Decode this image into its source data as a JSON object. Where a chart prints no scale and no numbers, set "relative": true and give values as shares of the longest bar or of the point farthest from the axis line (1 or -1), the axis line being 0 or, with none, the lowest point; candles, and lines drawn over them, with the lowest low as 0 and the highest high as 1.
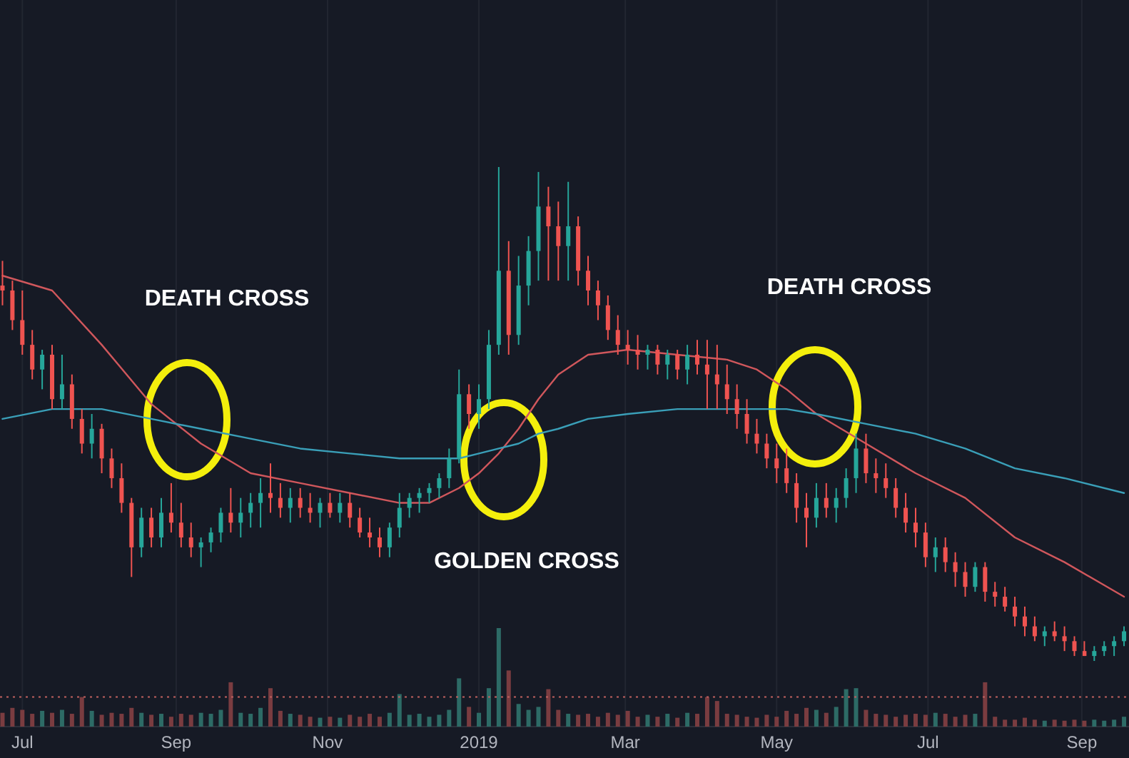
{
  "chart_data": [
    {
      "type": "candlestick",
      "relative": true,
      "tick_labels": false,
      "grid": "x",
      "xlim": [
        "2018-06-22",
        "2019-09-20"
      ],
      "xticks": [
        {
          "value": "2018-07-01",
          "label": null
        },
        {
          "value": "2018-09-01",
          "label": null
        },
        {
          "value": "2018-11-01",
          "label": null
        },
        {
          "value": "2019-01-01",
          "label": null
        },
        {
          "value": "2019-03-01",
          "label": null
        },
        {
          "value": "2019-05-01",
          "label": null
        },
        {
          "value": "2019-07-01",
          "label": null
        },
        {
          "value": "2019-09-01",
          "label": null
        }
      ],
      "x": [
        "2018-06-23",
        "2018-06-27",
        "2018-07-01",
        "2018-07-05",
        "2018-07-09",
        "2018-07-13",
        "2018-07-17",
        "2018-07-21",
        "2018-07-25",
        "2018-07-29",
        "2018-08-02",
        "2018-08-06",
        "2018-08-10",
        "2018-08-14",
        "2018-08-18",
        "2018-08-22",
        "2018-08-26",
        "2018-08-30",
        "2018-09-03",
        "2018-09-07",
        "2018-09-11",
        "2018-09-15",
        "2018-09-19",
        "2018-09-23",
        "2018-09-27",
        "2018-10-01",
        "2018-10-05",
        "2018-10-09",
        "2018-10-13",
        "2018-10-17",
        "2018-10-21",
        "2018-10-25",
        "2018-10-29",
        "2018-11-02",
        "2018-11-06",
        "2018-11-10",
        "2018-11-14",
        "2018-11-18",
        "2018-11-22",
        "2018-11-26",
        "2018-11-30",
        "2018-12-04",
        "2018-12-08",
        "2018-12-12",
        "2018-12-16",
        "2018-12-20",
        "2018-12-24",
        "2018-12-28",
        "2019-01-01",
        "2019-01-05",
        "2019-01-09",
        "2019-01-13",
        "2019-01-17",
        "2019-01-21",
        "2019-01-25",
        "2019-01-29",
        "2019-02-02",
        "2019-02-06",
        "2019-02-10",
        "2019-02-14",
        "2019-02-18",
        "2019-02-22",
        "2019-02-26",
        "2019-03-02",
        "2019-03-06",
        "2019-03-10",
        "2019-03-14",
        "2019-03-18",
        "2019-03-22",
        "2019-03-26",
        "2019-03-30",
        "2019-04-03",
        "2019-04-07",
        "2019-04-11",
        "2019-04-15",
        "2019-04-19",
        "2019-04-23",
        "2019-04-27",
        "2019-05-01",
        "2019-05-05",
        "2019-05-09",
        "2019-05-13",
        "2019-05-17",
        "2019-05-21",
        "2019-05-25",
        "2019-05-29",
        "2019-06-02",
        "2019-06-06",
        "2019-06-10",
        "2019-06-14",
        "2019-06-18",
        "2019-06-22",
        "2019-06-26",
        "2019-06-30",
        "2019-07-04",
        "2019-07-08",
        "2019-07-12",
        "2019-07-16",
        "2019-07-20",
        "2019-07-24",
        "2019-07-28",
        "2019-08-01",
        "2019-08-05",
        "2019-08-09",
        "2019-08-13",
        "2019-08-17",
        "2019-08-21",
        "2019-08-25",
        "2019-08-29",
        "2019-09-02",
        "2019-09-06",
        "2019-09-10",
        "2019-09-14",
        "2019-09-18"
      ],
      "ohlc": [
        [
          0.76,
          0.81,
          0.72,
          0.75
        ],
        [
          0.75,
          0.77,
          0.67,
          0.69
        ],
        [
          0.69,
          0.75,
          0.62,
          0.64
        ],
        [
          0.64,
          0.67,
          0.57,
          0.59
        ],
        [
          0.59,
          0.63,
          0.55,
          0.62
        ],
        [
          0.62,
          0.64,
          0.51,
          0.53
        ],
        [
          0.53,
          0.62,
          0.51,
          0.56
        ],
        [
          0.56,
          0.58,
          0.47,
          0.49
        ],
        [
          0.49,
          0.51,
          0.42,
          0.44
        ],
        [
          0.44,
          0.5,
          0.41,
          0.47
        ],
        [
          0.47,
          0.48,
          0.38,
          0.41
        ],
        [
          0.41,
          0.43,
          0.35,
          0.37
        ],
        [
          0.37,
          0.4,
          0.3,
          0.32
        ],
        [
          0.32,
          0.33,
          0.17,
          0.23
        ],
        [
          0.23,
          0.31,
          0.21,
          0.29
        ],
        [
          0.29,
          0.31,
          0.23,
          0.25
        ],
        [
          0.25,
          0.33,
          0.23,
          0.3
        ],
        [
          0.3,
          0.36,
          0.26,
          0.28
        ],
        [
          0.28,
          0.32,
          0.23,
          0.25
        ],
        [
          0.25,
          0.28,
          0.21,
          0.23
        ],
        [
          0.23,
          0.25,
          0.19,
          0.24
        ],
        [
          0.24,
          0.27,
          0.22,
          0.26
        ],
        [
          0.26,
          0.31,
          0.24,
          0.3
        ],
        [
          0.3,
          0.35,
          0.26,
          0.28
        ],
        [
          0.28,
          0.33,
          0.25,
          0.3
        ],
        [
          0.3,
          0.34,
          0.27,
          0.32
        ],
        [
          0.32,
          0.37,
          0.27,
          0.34
        ],
        [
          0.34,
          0.4,
          0.3,
          0.33
        ],
        [
          0.33,
          0.36,
          0.29,
          0.31
        ],
        [
          0.31,
          0.35,
          0.28,
          0.33
        ],
        [
          0.33,
          0.35,
          0.29,
          0.31
        ],
        [
          0.31,
          0.34,
          0.28,
          0.3
        ],
        [
          0.3,
          0.33,
          0.27,
          0.32
        ],
        [
          0.32,
          0.34,
          0.29,
          0.3
        ],
        [
          0.3,
          0.34,
          0.28,
          0.32
        ],
        [
          0.32,
          0.34,
          0.27,
          0.29
        ],
        [
          0.29,
          0.31,
          0.25,
          0.26
        ],
        [
          0.26,
          0.29,
          0.23,
          0.25
        ],
        [
          0.25,
          0.27,
          0.21,
          0.23
        ],
        [
          0.23,
          0.28,
          0.21,
          0.27
        ],
        [
          0.27,
          0.34,
          0.25,
          0.31
        ],
        [
          0.31,
          0.34,
          0.29,
          0.33
        ],
        [
          0.33,
          0.35,
          0.3,
          0.34
        ],
        [
          0.34,
          0.36,
          0.32,
          0.35
        ],
        [
          0.35,
          0.38,
          0.33,
          0.37
        ],
        [
          0.37,
          0.43,
          0.35,
          0.41
        ],
        [
          0.41,
          0.59,
          0.4,
          0.54
        ],
        [
          0.54,
          0.56,
          0.47,
          0.5
        ],
        [
          0.5,
          0.56,
          0.47,
          0.53
        ],
        [
          0.53,
          0.67,
          0.51,
          0.64
        ],
        [
          0.64,
          1,
          0.62,
          0.79
        ],
        [
          0.79,
          0.85,
          0.62,
          0.66
        ],
        [
          0.66,
          0.82,
          0.64,
          0.76
        ],
        [
          0.76,
          0.86,
          0.72,
          0.83
        ],
        [
          0.83,
          0.99,
          0.77,
          0.92
        ],
        [
          0.92,
          0.96,
          0.77,
          0.88
        ],
        [
          0.88,
          0.93,
          0.77,
          0.84
        ],
        [
          0.84,
          0.97,
          0.77,
          0.88
        ],
        [
          0.88,
          0.9,
          0.76,
          0.79
        ],
        [
          0.79,
          0.82,
          0.72,
          0.75
        ],
        [
          0.75,
          0.77,
          0.69,
          0.72
        ],
        [
          0.72,
          0.74,
          0.65,
          0.67
        ],
        [
          0.67,
          0.7,
          0.62,
          0.64
        ],
        [
          0.64,
          0.67,
          0.6,
          0.63
        ],
        [
          0.63,
          0.66,
          0.59,
          0.62
        ],
        [
          0.62,
          0.64,
          0.59,
          0.63
        ],
        [
          0.63,
          0.64,
          0.58,
          0.6
        ],
        [
          0.6,
          0.63,
          0.57,
          0.62
        ],
        [
          0.62,
          0.63,
          0.57,
          0.59
        ],
        [
          0.59,
          0.64,
          0.56,
          0.62
        ],
        [
          0.62,
          0.65,
          0.58,
          0.6
        ],
        [
          0.6,
          0.65,
          0.51,
          0.58
        ],
        [
          0.58,
          0.64,
          0.51,
          0.56
        ],
        [
          0.56,
          0.6,
          0.5,
          0.53
        ],
        [
          0.53,
          0.56,
          0.47,
          0.5
        ],
        [
          0.5,
          0.53,
          0.44,
          0.46
        ],
        [
          0.46,
          0.49,
          0.42,
          0.44
        ],
        [
          0.44,
          0.46,
          0.39,
          0.41
        ],
        [
          0.41,
          0.44,
          0.36,
          0.39
        ],
        [
          0.39,
          0.43,
          0.34,
          0.36
        ],
        [
          0.36,
          0.38,
          0.28,
          0.31
        ],
        [
          0.31,
          0.34,
          0.23,
          0.29
        ],
        [
          0.29,
          0.36,
          0.27,
          0.33
        ],
        [
          0.33,
          0.36,
          0.29,
          0.31
        ],
        [
          0.31,
          0.35,
          0.28,
          0.33
        ],
        [
          0.33,
          0.39,
          0.31,
          0.37
        ],
        [
          0.37,
          0.46,
          0.34,
          0.43
        ],
        [
          0.43,
          0.46,
          0.36,
          0.38
        ],
        [
          0.38,
          0.41,
          0.34,
          0.37
        ],
        [
          0.37,
          0.4,
          0.33,
          0.35
        ],
        [
          0.35,
          0.37,
          0.29,
          0.31
        ],
        [
          0.31,
          0.34,
          0.26,
          0.28
        ],
        [
          0.28,
          0.31,
          0.23,
          0.26
        ],
        [
          0.26,
          0.28,
          0.19,
          0.21
        ],
        [
          0.21,
          0.25,
          0.18,
          0.23
        ],
        [
          0.23,
          0.25,
          0.18,
          0.2
        ],
        [
          0.2,
          0.22,
          0.15,
          0.18
        ],
        [
          0.18,
          0.2,
          0.13,
          0.15
        ],
        [
          0.15,
          0.2,
          0.14,
          0.19
        ],
        [
          0.19,
          0.2,
          0.12,
          0.14
        ],
        [
          0.14,
          0.16,
          0.11,
          0.13
        ],
        [
          0.13,
          0.15,
          0.1,
          0.11
        ],
        [
          0.11,
          0.13,
          0.07,
          0.09
        ],
        [
          0.09,
          0.11,
          0.05,
          0.07
        ],
        [
          0.07,
          0.09,
          0.04,
          0.05
        ],
        [
          0.05,
          0.07,
          0.03,
          0.06
        ],
        [
          0.06,
          0.08,
          0.04,
          0.05
        ],
        [
          0.05,
          0.07,
          0.02,
          0.04
        ],
        [
          0.04,
          0.05,
          0.01,
          0.02
        ],
        [
          0.02,
          0.04,
          0.01,
          0.01
        ],
        [
          0.01,
          0.03,
          0,
          0.02
        ],
        [
          0.02,
          0.04,
          0.01,
          0.03
        ],
        [
          0.03,
          0.05,
          0.01,
          0.04
        ],
        [
          0.04,
          0.07,
          0.03,
          0.06
        ]
      ],
      "colors": [
        "#ef5350",
        "#ef5350",
        "#ef5350",
        "#ef5350",
        "#26a69a",
        "#ef5350",
        "#26a69a",
        "#ef5350",
        "#ef5350",
        "#26a69a",
        "#ef5350",
        "#ef5350",
        "#ef5350",
        "#ef5350",
        "#26a69a",
        "#ef5350",
        "#26a69a",
        "#ef5350",
        "#ef5350",
        "#ef5350",
        "#26a69a",
        "#26a69a",
        "#26a69a",
        "#ef5350",
        "#26a69a",
        "#26a69a",
        "#26a69a",
        "#ef5350",
        "#ef5350",
        "#26a69a",
        "#ef5350",
        "#ef5350",
        "#26a69a",
        "#ef5350",
        "#26a69a",
        "#ef5350",
        "#ef5350",
        "#ef5350",
        "#ef5350",
        "#26a69a",
        "#26a69a",
        "#26a69a",
        "#26a69a",
        "#26a69a",
        "#26a69a",
        "#26a69a",
        "#26a69a",
        "#ef5350",
        "#26a69a",
        "#26a69a",
        "#26a69a",
        "#ef5350",
        "#26a69a",
        "#26a69a",
        "#26a69a",
        "#ef5350",
        "#ef5350",
        "#26a69a",
        "#ef5350",
        "#ef5350",
        "#ef5350",
        "#ef5350",
        "#ef5350",
        "#ef5350",
        "#ef5350",
        "#26a69a",
        "#ef5350",
        "#26a69a",
        "#ef5350",
        "#26a69a",
        "#ef5350",
        "#ef5350",
        "#ef5350",
        "#ef5350",
        "#ef5350",
        "#ef5350",
        "#ef5350",
        "#ef5350",
        "#ef5350",
        "#ef5350",
        "#ef5350",
        "#ef5350",
        "#26a69a",
        "#ef5350",
        "#26a69a",
        "#26a69a",
        "#26a69a",
        "#ef5350",
        "#ef5350",
        "#ef5350",
        "#ef5350",
        "#ef5350",
        "#ef5350",
        "#ef5350",
        "#26a69a",
        "#ef5350",
        "#ef5350",
        "#ef5350",
        "#26a69a",
        "#ef5350",
        "#ef5350",
        "#ef5350",
        "#ef5350",
        "#ef5350",
        "#ef5350",
        "#26a69a",
        "#ef5350",
        "#ef5350",
        "#ef5350",
        "#ef5350",
        "#26a69a",
        "#26a69a",
        "#26a69a",
        "#26a69a"
      ],
      "series": [
        {
          "type": "line",
          "color": "#d0575c",
          "x": [
            "2018-06-23",
            "2018-07-13",
            "2018-08-02",
            "2018-08-22",
            "2018-09-11",
            "2018-10-01",
            "2018-10-21",
            "2018-11-10",
            "2018-11-30",
            "2018-12-12",
            "2018-12-24",
            "2019-01-01",
            "2019-01-09",
            "2019-01-17",
            "2019-01-25",
            "2019-02-02",
            "2019-02-14",
            "2019-03-02",
            "2019-03-22",
            "2019-04-11",
            "2019-04-23",
            "2019-05-05",
            "2019-05-17",
            "2019-06-06",
            "2019-06-26",
            "2019-07-16",
            "2019-08-05",
            "2019-08-25",
            "2019-09-18"
          ],
          "values": [
            0.78,
            0.75,
            0.64,
            0.52,
            0.44,
            0.38,
            0.36,
            0.34,
            0.32,
            0.32,
            0.35,
            0.38,
            0.42,
            0.47,
            0.53,
            0.58,
            0.62,
            0.63,
            0.62,
            0.61,
            0.59,
            0.55,
            0.5,
            0.44,
            0.38,
            0.33,
            0.25,
            0.2,
            0.13
          ]
        },
        {
          "type": "line",
          "color": "#3a9fb8",
          "x": [
            "2018-06-23",
            "2018-07-13",
            "2018-08-02",
            "2018-08-22",
            "2018-09-11",
            "2018-10-01",
            "2018-10-21",
            "2018-11-10",
            "2018-11-30",
            "2018-12-12",
            "2018-12-24",
            "2019-01-01",
            "2019-01-09",
            "2019-01-17",
            "2019-01-25",
            "2019-02-02",
            "2019-02-14",
            "2019-03-02",
            "2019-03-22",
            "2019-04-11",
            "2019-04-23",
            "2019-05-05",
            "2019-05-17",
            "2019-06-06",
            "2019-06-26",
            "2019-07-16",
            "2019-08-05",
            "2019-08-25",
            "2019-09-18"
          ],
          "values": [
            0.49,
            0.51,
            0.51,
            0.49,
            0.47,
            0.45,
            0.43,
            0.42,
            0.41,
            0.41,
            0.41,
            0.42,
            0.43,
            0.44,
            0.46,
            0.47,
            0.49,
            0.5,
            0.51,
            0.51,
            0.51,
            0.51,
            0.5,
            0.48,
            0.46,
            0.43,
            0.39,
            0.37,
            0.34
          ]
        }
      ],
      "annotations": [
        "DEATH CROSS",
        "GOLDEN CROSS",
        "DEATH CROSS"
      ]
    },
    {
      "type": "bar",
      "relative": true,
      "grid": "x",
      "xlim": [
        "2018-06-22",
        "2019-09-20"
      ],
      "xticks": [
        {
          "value": "2018-07-01",
          "label": "Jul"
        },
        {
          "value": "2018-09-01",
          "label": "Sep"
        },
        {
          "value": "2018-11-01",
          "label": "Nov"
        },
        {
          "value": "2019-01-01",
          "label": "2019"
        },
        {
          "value": "2019-03-01",
          "label": "Mar"
        },
        {
          "value": "2019-05-01",
          "label": "May"
        },
        {
          "value": "2019-07-01",
          "label": "Jul"
        },
        {
          "value": "2019-09-01",
          "label": "Sep"
        }
      ],
      "x": [
        "2018-06-23",
        "2018-06-27",
        "2018-07-01",
        "2018-07-05",
        "2018-07-09",
        "2018-07-13",
        "2018-07-17",
        "2018-07-21",
        "2018-07-25",
        "2018-07-29",
        "2018-08-02",
        "2018-08-06",
        "2018-08-10",
        "2018-08-14",
        "2018-08-18",
        "2018-08-22",
        "2018-08-26",
        "2018-08-30",
        "2018-09-03",
        "2018-09-07",
        "2018-09-11",
        "2018-09-15",
        "2018-09-19",
        "2018-09-23",
        "2018-09-27",
        "2018-10-01",
        "2018-10-05",
        "2018-10-09",
        "2018-10-13",
        "2018-10-17",
        "2018-10-21",
        "2018-10-25",
        "2018-10-29",
        "2018-11-02",
        "2018-11-06",
        "2018-11-10",
        "2018-11-14",
        "2018-11-18",
        "2018-11-22",
        "2018-11-26",
        "2018-11-30",
        "2018-12-04",
        "2018-12-08",
        "2018-12-12",
        "2018-12-16",
        "2018-12-20",
        "2018-12-24",
        "2018-12-28",
        "2019-01-01",
        "2019-01-05",
        "2019-01-09",
        "2019-01-13",
        "2019-01-17",
        "2019-01-21",
        "2019-01-25",
        "2019-01-29",
        "2019-02-02",
        "2019-02-06",
        "2019-02-10",
        "2019-02-14",
        "2019-02-18",
        "2019-02-22",
        "2019-02-26",
        "2019-03-02",
        "2019-03-06",
        "2019-03-10",
        "2019-03-14",
        "2019-03-18",
        "2019-03-22",
        "2019-03-26",
        "2019-03-30",
        "2019-04-03",
        "2019-04-07",
        "2019-04-11",
        "2019-04-15",
        "2019-04-19",
        "2019-04-23",
        "2019-04-27",
        "2019-05-01",
        "2019-05-05",
        "2019-05-09",
        "2019-05-13",
        "2019-05-17",
        "2019-05-21",
        "2019-05-25",
        "2019-05-29",
        "2019-06-02",
        "2019-06-06",
        "2019-06-10",
        "2019-06-14",
        "2019-06-18",
        "2019-06-22",
        "2019-06-26",
        "2019-06-30",
        "2019-07-04",
        "2019-07-08",
        "2019-07-12",
        "2019-07-16",
        "2019-07-20",
        "2019-07-24",
        "2019-07-28",
        "2019-08-01",
        "2019-08-05",
        "2019-08-09",
        "2019-08-13",
        "2019-08-17",
        "2019-08-21",
        "2019-08-25",
        "2019-08-29",
        "2019-09-02",
        "2019-09-06",
        "2019-09-10",
        "2019-09-14",
        "2019-09-18"
      ],
      "values": [
        0.14,
        0.19,
        0.17,
        0.13,
        0.16,
        0.14,
        0.17,
        0.13,
        0.3,
        0.16,
        0.12,
        0.14,
        0.13,
        0.19,
        0.14,
        0.12,
        0.13,
        0.1,
        0.13,
        0.12,
        0.14,
        0.13,
        0.17,
        0.45,
        0.14,
        0.13,
        0.19,
        0.39,
        0.16,
        0.13,
        0.12,
        0.1,
        0.09,
        0.1,
        0.09,
        0.12,
        0.1,
        0.13,
        0.1,
        0.14,
        0.33,
        0.12,
        0.13,
        0.1,
        0.12,
        0.17,
        0.49,
        0.2,
        0.14,
        0.39,
        1,
        0.57,
        0.23,
        0.17,
        0.2,
        0.38,
        0.17,
        0.13,
        0.12,
        0.13,
        0.1,
        0.14,
        0.12,
        0.16,
        0.1,
        0.12,
        0.1,
        0.13,
        0.09,
        0.14,
        0.13,
        0.3,
        0.26,
        0.13,
        0.12,
        0.1,
        0.09,
        0.12,
        0.1,
        0.16,
        0.13,
        0.19,
        0.17,
        0.14,
        0.2,
        0.38,
        0.39,
        0.17,
        0.13,
        0.12,
        0.1,
        0.12,
        0.13,
        0.12,
        0.14,
        0.13,
        0.1,
        0.12,
        0.13,
        0.45,
        0.1,
        0.07,
        0.07,
        0.09,
        0.07,
        0.06,
        0.07,
        0.06,
        0.07,
        0.06,
        0.07,
        0.06,
        0.07,
        0.1
      ],
      "colors": [
        "#7a3c40",
        "#7a3c40",
        "#7a3c40",
        "#7a3c40",
        "#2d6b66",
        "#7a3c40",
        "#2d6b66",
        "#7a3c40",
        "#7a3c40",
        "#2d6b66",
        "#7a3c40",
        "#7a3c40",
        "#7a3c40",
        "#7a3c40",
        "#2d6b66",
        "#7a3c40",
        "#2d6b66",
        "#7a3c40",
        "#7a3c40",
        "#7a3c40",
        "#2d6b66",
        "#2d6b66",
        "#2d6b66",
        "#7a3c40",
        "#2d6b66",
        "#2d6b66",
        "#2d6b66",
        "#7a3c40",
        "#7a3c40",
        "#2d6b66",
        "#7a3c40",
        "#7a3c40",
        "#2d6b66",
        "#7a3c40",
        "#2d6b66",
        "#7a3c40",
        "#7a3c40",
        "#7a3c40",
        "#7a3c40",
        "#2d6b66",
        "#2d6b66",
        "#2d6b66",
        "#2d6b66",
        "#2d6b66",
        "#2d6b66",
        "#2d6b66",
        "#2d6b66",
        "#7a3c40",
        "#2d6b66",
        "#2d6b66",
        "#2d6b66",
        "#7a3c40",
        "#2d6b66",
        "#2d6b66",
        "#2d6b66",
        "#7a3c40",
        "#7a3c40",
        "#2d6b66",
        "#7a3c40",
        "#7a3c40",
        "#7a3c40",
        "#7a3c40",
        "#7a3c40",
        "#7a3c40",
        "#7a3c40",
        "#2d6b66",
        "#7a3c40",
        "#2d6b66",
        "#7a3c40",
        "#2d6b66",
        "#7a3c40",
        "#7a3c40",
        "#7a3c40",
        "#7a3c40",
        "#7a3c40",
        "#7a3c40",
        "#7a3c40",
        "#7a3c40",
        "#7a3c40",
        "#7a3c40",
        "#7a3c40",
        "#7a3c40",
        "#2d6b66",
        "#7a3c40",
        "#2d6b66",
        "#2d6b66",
        "#2d6b66",
        "#7a3c40",
        "#7a3c40",
        "#7a3c40",
        "#7a3c40",
        "#7a3c40",
        "#7a3c40",
        "#7a3c40",
        "#2d6b66",
        "#7a3c40",
        "#7a3c40",
        "#7a3c40",
        "#2d6b66",
        "#7a3c40",
        "#7a3c40",
        "#7a3c40",
        "#7a3c40",
        "#7a3c40",
        "#7a3c40",
        "#2d6b66",
        "#7a3c40",
        "#7a3c40",
        "#7a3c40",
        "#7a3c40",
        "#2d6b66",
        "#2d6b66",
        "#2d6b66",
        "#2d6b66"
      ],
      "ref_lines": [
        {
          "axis": "y",
          "value": 0.3,
          "color": "#c0605f",
          "line_style": "dotted"
        }
      ]
    }
  ]
}
